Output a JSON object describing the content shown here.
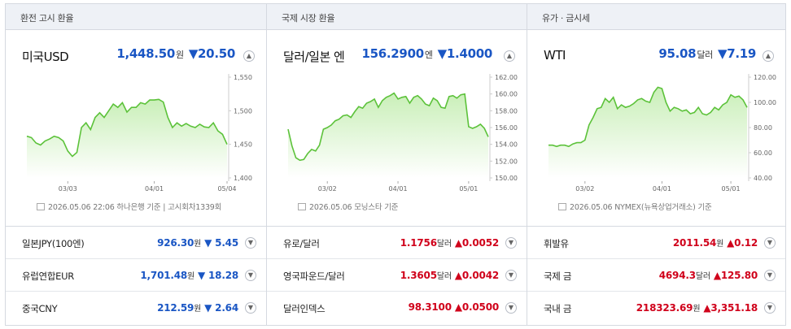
{
  "panels": [
    {
      "tab": "환전 고시 환율",
      "main": {
        "name": "미국USD",
        "value": "1,448.50",
        "unit": "원",
        "change": "▼20.50",
        "direction": "down",
        "source": "2026.05.06 22:06 하나은행 기준 | 고시회차1339회"
      },
      "rows": [
        {
          "name": "일본JPY(100엔)",
          "value": "926.30",
          "unit": "원",
          "change": "▼ 5.45",
          "direction": "down"
        },
        {
          "name": "유럽연합EUR",
          "value": "1,701.48",
          "unit": "원",
          "change": "▼ 18.28",
          "direction": "down"
        },
        {
          "name": "중국CNY",
          "value": "212.59",
          "unit": "원",
          "change": "▼ 2.64",
          "direction": "down"
        }
      ]
    },
    {
      "tab": "국제 시장 환율",
      "main": {
        "name": "달러/일본 엔",
        "value": "156.2900",
        "unit": "엔",
        "change": "▼1.4000",
        "direction": "down",
        "source": "2026.05.06 모닝스타 기준"
      },
      "rows": [
        {
          "name": "유로/달러",
          "value": "1.1756",
          "unit": "달러",
          "change": "▲0.0052",
          "direction": "up"
        },
        {
          "name": "영국파운드/달러",
          "value": "1.3605",
          "unit": "달러",
          "change": "▲0.0042",
          "direction": "up"
        },
        {
          "name": "달러인덱스",
          "value": "98.3100",
          "unit": "",
          "change": "▲0.0500",
          "direction": "up"
        }
      ]
    },
    {
      "tab": "유가 · 금시세",
      "main": {
        "name": "WTI",
        "value": "95.08",
        "unit": "달러",
        "change": "▼7.19",
        "direction": "down",
        "source": "2026.05.06 NYMEX(뉴욕상업거래소) 기준"
      },
      "rows": [
        {
          "name": "휘발유",
          "value": "2011.54",
          "unit": "원",
          "change": "▲0.12",
          "direction": "up"
        },
        {
          "name": "국제 금",
          "value": "4694.3",
          "unit": "달러",
          "change": "▲125.80",
          "direction": "up"
        },
        {
          "name": "국내 금",
          "value": "218323.69",
          "unit": "원",
          "change": "▲3,351.18",
          "direction": "up"
        }
      ]
    }
  ],
  "colors": {
    "down": "#1a56c4",
    "up": "#d0021b",
    "line": "#5cc23a",
    "fill": "#c9efb8"
  },
  "chart_data": [
    {
      "type": "area",
      "series_count": 1,
      "x_ticks": [
        "03/03",
        "04/01",
        "05/04"
      ],
      "x_tick_index": [
        9,
        28,
        44
      ],
      "y_ticks": [
        "1,550",
        "1,500",
        "1,450",
        "1,400"
      ],
      "ylim": [
        1400,
        1550
      ],
      "values": [
        1462,
        1460,
        1452,
        1449,
        1455,
        1458,
        1462,
        1460,
        1455,
        1440,
        1432,
        1438,
        1475,
        1482,
        1472,
        1490,
        1497,
        1490,
        1500,
        1510,
        1505,
        1512,
        1498,
        1505,
        1505,
        1512,
        1510,
        1516,
        1516,
        1517,
        1513,
        1490,
        1475,
        1482,
        1477,
        1481,
        1477,
        1475,
        1480,
        1476,
        1475,
        1482,
        1470,
        1465,
        1450
      ]
    },
    {
      "type": "area",
      "series_count": 1,
      "x_ticks": [
        "03/02",
        "04/01",
        "05/01"
      ],
      "x_tick_index": [
        10,
        28,
        46
      ],
      "y_ticks": [
        "162.00",
        "160.00",
        "158.00",
        "156.00",
        "154.00",
        "152.00",
        "150.00"
      ],
      "ylim": [
        150,
        162
      ],
      "values": [
        155.8,
        153.8,
        152.4,
        152.1,
        152.2,
        152.9,
        153.4,
        153.2,
        153.9,
        155.8,
        156.0,
        156.3,
        156.8,
        157.0,
        157.4,
        157.5,
        157.2,
        157.9,
        158.5,
        158.3,
        158.9,
        159.1,
        159.4,
        158.4,
        159.2,
        159.6,
        159.8,
        160.1,
        159.4,
        159.6,
        159.7,
        158.9,
        159.6,
        159.8,
        159.4,
        158.8,
        158.6,
        159.5,
        159.2,
        158.4,
        158.3,
        159.7,
        159.8,
        159.5,
        159.9,
        160.0,
        156.1,
        155.9,
        156.1,
        156.4,
        155.9,
        154.9
      ]
    },
    {
      "type": "area",
      "series_count": 1,
      "x_ticks": [
        "03/02",
        "04/01",
        "05/01"
      ],
      "x_tick_index": [
        9,
        28,
        45
      ],
      "y_ticks": [
        "120.00",
        "100.00",
        "80.00",
        "60.00",
        "40.00"
      ],
      "ylim": [
        40,
        120
      ],
      "values": [
        66,
        66,
        65,
        66,
        66,
        65,
        67,
        68,
        68,
        70,
        82,
        88,
        95,
        96,
        103,
        100,
        104,
        95,
        98,
        96,
        97,
        99,
        102,
        103,
        101,
        100,
        108,
        112,
        111,
        100,
        93,
        96,
        95,
        93,
        94,
        91,
        92,
        96,
        91,
        90,
        92,
        96,
        94,
        98,
        100,
        106,
        104,
        105,
        102,
        96
      ]
    }
  ]
}
